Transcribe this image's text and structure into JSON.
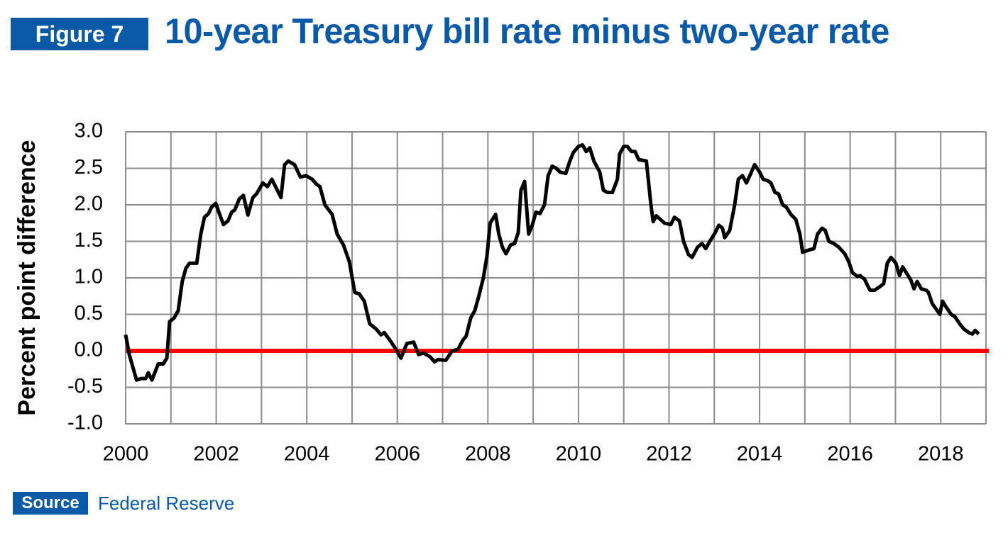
{
  "figure_label": "Figure 7",
  "source_label": "Source",
  "source": "Federal Reserve",
  "chart_data": {
    "type": "line",
    "title": "10-year Treasury bill rate minus two-year rate",
    "y_label": "Percent point difference",
    "xlim": [
      2000,
      2019
    ],
    "xticks": [
      2000,
      2002,
      2004,
      2006,
      2008,
      2010,
      2012,
      2014,
      2016,
      2018
    ],
    "xgrid_ticks": [
      2000,
      2001,
      2002,
      2003,
      2004,
      2005,
      2006,
      2007,
      2008,
      2009,
      2010,
      2011,
      2012,
      2013,
      2014,
      2015,
      2016,
      2017,
      2018,
      2019
    ],
    "ylim": [
      -1,
      3
    ],
    "yticks": [
      {
        "value": -1,
        "label": "-1.0"
      },
      -0.5,
      {
        "value": 0,
        "label": "0.0"
      },
      0.5,
      {
        "value": 1,
        "label": "1.0"
      },
      1.5,
      {
        "value": 2,
        "label": "2.0"
      },
      2.5,
      {
        "value": 3,
        "label": "3.0"
      }
    ],
    "grid": true,
    "reference_line": {
      "value": 0,
      "color": "#ff0000"
    },
    "series": [
      {
        "color": "#000000",
        "x": [
          2000.0,
          2000.08,
          2000.24,
          2000.34,
          2000.44,
          2000.5,
          2000.58,
          2000.72,
          2000.83,
          2000.91,
          2000.97,
          2001.07,
          2001.16,
          2001.25,
          2001.33,
          2001.41,
          2001.57,
          2001.66,
          2001.74,
          2001.83,
          2001.9,
          2001.99,
          2002.07,
          2002.16,
          2002.26,
          2002.34,
          2002.41,
          2002.51,
          2002.6,
          2002.7,
          2002.81,
          2002.89,
          2003.03,
          2003.13,
          2003.23,
          2003.43,
          2003.51,
          2003.59,
          2003.73,
          2003.86,
          2003.98,
          2004.12,
          2004.22,
          2004.29,
          2004.4,
          2004.56,
          2004.67,
          2004.81,
          2004.94,
          2005.06,
          2005.16,
          2005.27,
          2005.39,
          2005.53,
          2005.64,
          2005.71,
          2005.83,
          2005.94,
          2006.08,
          2006.21,
          2006.36,
          2006.47,
          2006.58,
          2006.72,
          2006.82,
          2006.9,
          2007.07,
          2007.21,
          2007.34,
          2007.45,
          2007.52,
          2007.62,
          2007.71,
          2007.8,
          2007.9,
          2007.98,
          2008.05,
          2008.17,
          2008.24,
          2008.32,
          2008.4,
          2008.5,
          2008.59,
          2008.67,
          2008.73,
          2008.81,
          2008.9,
          2008.98,
          2009.06,
          2009.15,
          2009.25,
          2009.33,
          2009.42,
          2009.51,
          2009.59,
          2009.72,
          2009.81,
          2009.89,
          2010.0,
          2010.09,
          2010.17,
          2010.25,
          2010.34,
          2010.47,
          2010.55,
          2010.64,
          2010.75,
          2010.86,
          2010.91,
          2011.0,
          2011.08,
          2011.17,
          2011.25,
          2011.33,
          2011.5,
          2011.6,
          2011.65,
          2011.72,
          2011.9,
          2012.04,
          2012.12,
          2012.23,
          2012.32,
          2012.43,
          2012.51,
          2012.63,
          2012.73,
          2012.81,
          2012.9,
          2013.02,
          2013.1,
          2013.18,
          2013.23,
          2013.34,
          2013.45,
          2013.53,
          2013.62,
          2013.71,
          2013.82,
          2013.89,
          2014.0,
          2014.08,
          2014.18,
          2014.25,
          2014.34,
          2014.42,
          2014.51,
          2014.59,
          2014.69,
          2014.8,
          2014.89,
          2014.95,
          2015.08,
          2015.2,
          2015.28,
          2015.38,
          2015.45,
          2015.53,
          2015.64,
          2015.75,
          2015.88,
          2015.97,
          2016.05,
          2016.16,
          2016.22,
          2016.32,
          2016.38,
          2016.44,
          2016.54,
          2016.66,
          2016.74,
          2016.82,
          2016.9,
          2017.01,
          2017.09,
          2017.16,
          2017.26,
          2017.34,
          2017.41,
          2017.48,
          2017.57,
          2017.68,
          2017.73,
          2017.81,
          2017.98,
          2018.04,
          2018.12,
          2018.23,
          2018.31,
          2018.42,
          2018.51,
          2018.62,
          2018.7,
          2018.76,
          2018.84
        ],
        "values": [
          0.22,
          -0.05,
          -0.4,
          -0.38,
          -0.38,
          -0.3,
          -0.4,
          -0.18,
          -0.18,
          -0.1,
          0.4,
          0.45,
          0.55,
          0.95,
          1.13,
          1.2,
          1.2,
          1.6,
          1.83,
          1.88,
          1.97,
          2.02,
          1.88,
          1.73,
          1.78,
          1.9,
          1.93,
          2.08,
          2.13,
          1.86,
          2.1,
          2.15,
          2.3,
          2.25,
          2.35,
          2.1,
          2.55,
          2.6,
          2.55,
          2.38,
          2.4,
          2.35,
          2.28,
          2.25,
          2.0,
          1.87,
          1.6,
          1.45,
          1.22,
          0.8,
          0.78,
          0.68,
          0.37,
          0.3,
          0.22,
          0.25,
          0.15,
          0.05,
          -0.1,
          0.1,
          0.12,
          -0.05,
          -0.03,
          -0.08,
          -0.15,
          -0.12,
          -0.13,
          0.0,
          0.02,
          0.15,
          0.2,
          0.45,
          0.55,
          0.75,
          1.0,
          1.3,
          1.75,
          1.87,
          1.6,
          1.42,
          1.33,
          1.45,
          1.47,
          1.62,
          2.2,
          2.32,
          1.6,
          1.72,
          1.9,
          1.88,
          2.0,
          2.4,
          2.53,
          2.5,
          2.45,
          2.43,
          2.6,
          2.72,
          2.8,
          2.82,
          2.73,
          2.78,
          2.6,
          2.45,
          2.2,
          2.17,
          2.17,
          2.35,
          2.7,
          2.8,
          2.8,
          2.73,
          2.73,
          2.62,
          2.6,
          2.0,
          1.77,
          1.85,
          1.75,
          1.73,
          1.83,
          1.78,
          1.5,
          1.32,
          1.28,
          1.42,
          1.47,
          1.4,
          1.5,
          1.62,
          1.72,
          1.68,
          1.55,
          1.65,
          2.0,
          2.35,
          2.4,
          2.3,
          2.45,
          2.55,
          2.45,
          2.35,
          2.33,
          2.3,
          2.17,
          2.15,
          2.0,
          1.97,
          1.87,
          1.8,
          1.6,
          1.35,
          1.38,
          1.4,
          1.6,
          1.68,
          1.65,
          1.5,
          1.47,
          1.42,
          1.33,
          1.22,
          1.07,
          1.02,
          1.03,
          0.98,
          0.9,
          0.83,
          0.83,
          0.88,
          0.92,
          1.2,
          1.28,
          1.2,
          1.03,
          1.15,
          1.05,
          0.97,
          0.85,
          0.95,
          0.85,
          0.83,
          0.8,
          0.65,
          0.5,
          0.68,
          0.6,
          0.5,
          0.47,
          0.37,
          0.3,
          0.25,
          0.23,
          0.28,
          0.23
        ]
      }
    ]
  }
}
